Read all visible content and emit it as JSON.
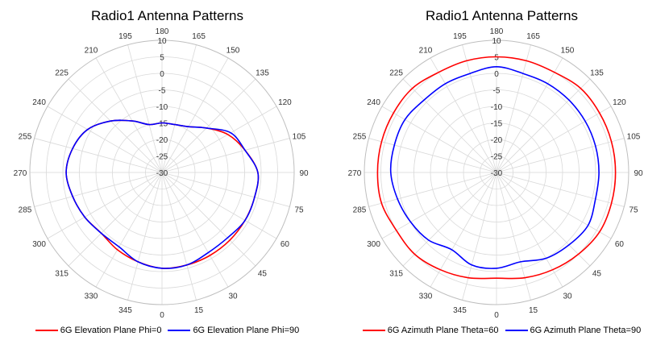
{
  "chart_data": [
    {
      "type": "polar-line",
      "title": "Radio1 Antenna Patterns",
      "angle_ticks": [
        "0",
        "15",
        "30",
        "45",
        "60",
        "75",
        "90",
        "105",
        "120",
        "135",
        "150",
        "165",
        "180",
        "195",
        "210",
        "225",
        "240",
        "255",
        "270",
        "285",
        "300",
        "315",
        "330",
        "345"
      ],
      "radial_ticks": [
        "-30",
        "-25",
        "-20",
        "-15",
        "-10",
        "-5",
        "0",
        "5",
        "10"
      ],
      "rlim": [
        -30,
        10
      ],
      "angle_zero": "bottom",
      "angle_direction": "counterclockwise",
      "grid": true,
      "legend_position": "bottom",
      "series": [
        {
          "name": "6G Elevation Plane Phi=0",
          "color": "#ff0000",
          "angles": [
            0,
            15,
            30,
            45,
            60,
            75,
            90,
            105,
            120,
            135,
            150,
            165,
            180,
            195,
            210,
            225,
            240,
            255,
            270,
            285,
            300,
            315,
            330,
            345
          ],
          "values": [
            -1,
            -1,
            -1,
            -1,
            -1,
            -1,
            -1,
            -4,
            -7,
            -11,
            -14,
            -15,
            -15,
            -15,
            -12,
            -8,
            -4,
            -2,
            -1,
            -2,
            -3,
            -4,
            -3,
            -2
          ]
        },
        {
          "name": "6G Elevation Plane Phi=90",
          "color": "#0000ff",
          "angles": [
            0,
            15,
            30,
            45,
            60,
            75,
            90,
            105,
            120,
            135,
            150,
            165,
            180,
            195,
            210,
            225,
            240,
            255,
            270,
            285,
            300,
            315,
            330,
            345
          ],
          "values": [
            -1,
            -1,
            -2,
            -2,
            -1,
            -1,
            -1,
            -4,
            -6,
            -11,
            -14,
            -15,
            -15,
            -15,
            -12,
            -8,
            -4,
            -2,
            -1,
            -2,
            -3,
            -4,
            -4,
            -2
          ]
        }
      ]
    },
    {
      "type": "polar-line",
      "title": "Radio1 Antenna Patterns",
      "angle_ticks": [
        "0",
        "15",
        "30",
        "45",
        "60",
        "75",
        "90",
        "105",
        "120",
        "135",
        "150",
        "165",
        "180",
        "195",
        "210",
        "225",
        "240",
        "255",
        "270",
        "285",
        "300",
        "315",
        "330",
        "345"
      ],
      "radial_ticks": [
        "-30",
        "-25",
        "-20",
        "-15",
        "-10",
        "-5",
        "0",
        "5",
        "10"
      ],
      "rlim": [
        -30,
        10
      ],
      "angle_zero": "bottom",
      "angle_direction": "counterclockwise",
      "grid": true,
      "legend_position": "bottom",
      "series": [
        {
          "name": "6G Azimuth Plane Theta=60",
          "color": "#ff0000",
          "angles": [
            0,
            15,
            30,
            45,
            60,
            75,
            90,
            105,
            120,
            135,
            150,
            165,
            180,
            195,
            210,
            225,
            240,
            255,
            270,
            285,
            300,
            315,
            330,
            345
          ],
          "values": [
            2,
            3,
            4,
            5,
            6,
            6,
            6,
            6,
            6,
            6,
            5,
            5,
            5,
            5,
            5,
            6,
            6,
            6,
            6,
            6,
            5,
            5,
            4,
            3
          ]
        },
        {
          "name": "6G Azimuth Plane Theta=90",
          "color": "#0000ff",
          "angles": [
            0,
            15,
            30,
            45,
            60,
            75,
            90,
            105,
            120,
            135,
            150,
            165,
            180,
            195,
            210,
            225,
            240,
            255,
            270,
            285,
            300,
            315,
            330,
            345
          ],
          "values": [
            -1,
            -2,
            0,
            1,
            2,
            1,
            1,
            1,
            1,
            1,
            1,
            1,
            2,
            1,
            1,
            1,
            2,
            2,
            2,
            1,
            0,
            -1,
            -3,
            -1
          ]
        }
      ]
    }
  ]
}
